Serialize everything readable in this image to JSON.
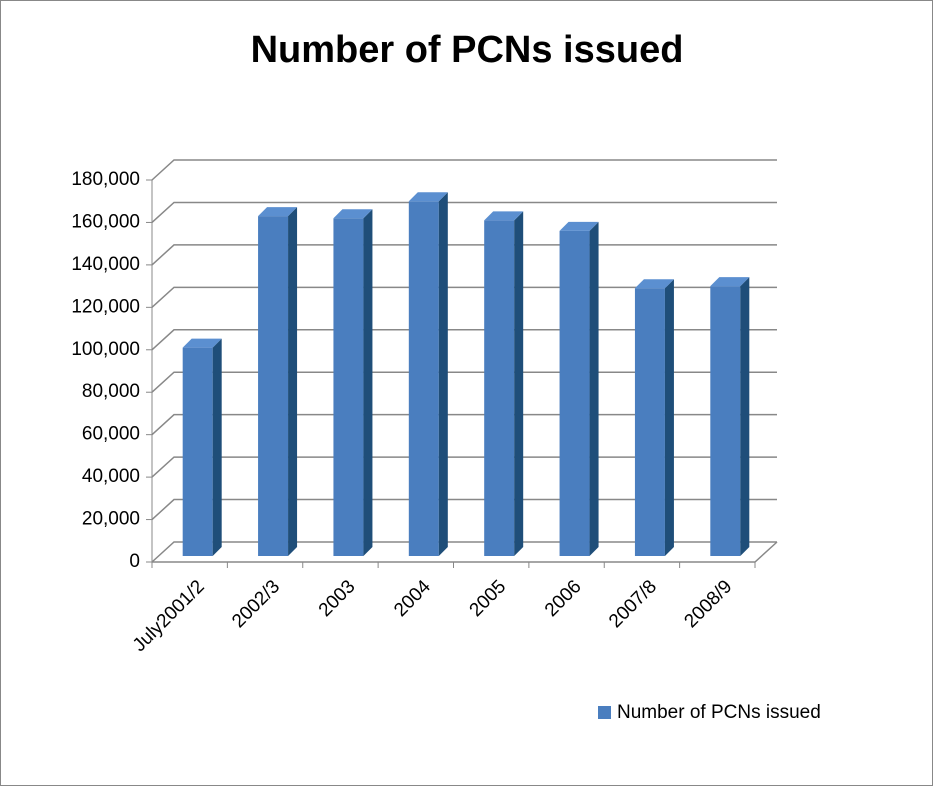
{
  "chart_data": {
    "type": "bar3d",
    "title": "Number of PCNs issued",
    "categories": [
      "July2001/2",
      "2002/3",
      "2003",
      "2004",
      "2005",
      "2006",
      "2007/8",
      "2008/9"
    ],
    "series": [
      {
        "name": "Number of PCNs issued",
        "color": "#4a7ebf",
        "values": [
          101000,
          163000,
          162000,
          170000,
          161000,
          156000,
          129000,
          130000
        ]
      }
    ],
    "ylim": [
      0,
      180000
    ],
    "yticks": [
      0,
      {
        "value": 20000,
        "label": "20,000"
      },
      {
        "value": 40000,
        "label": "40,000"
      },
      {
        "value": 60000,
        "label": "60,000"
      },
      {
        "value": 80000,
        "label": "80,000"
      },
      {
        "value": 100000,
        "label": "100,000"
      },
      {
        "value": 120000,
        "label": "120,000"
      },
      {
        "value": 140000,
        "label": "140,000"
      },
      {
        "value": 160000,
        "label": "160,000"
      },
      {
        "value": 180000,
        "label": "180,000"
      }
    ],
    "grid": true,
    "legend": "bottom-right"
  }
}
